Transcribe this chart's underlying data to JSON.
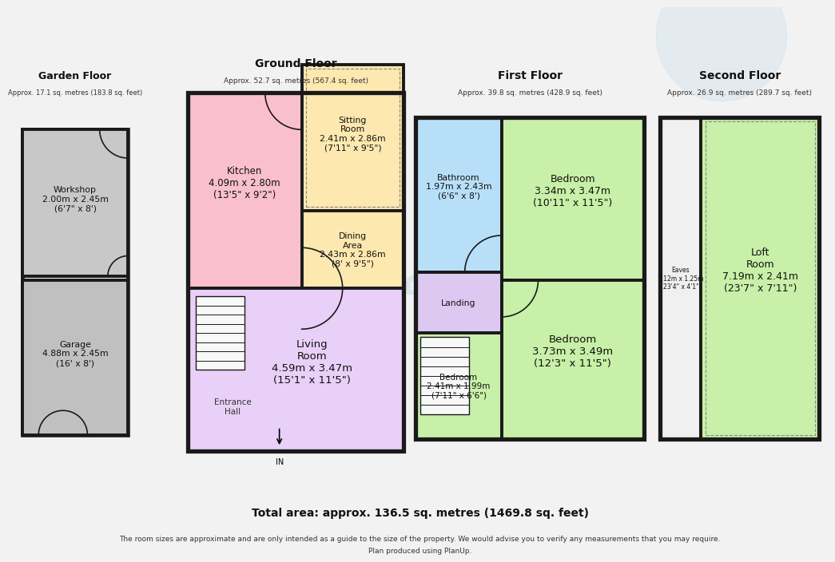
{
  "bg_color": "#f2f2f2",
  "wall_color": "#1a1a1a",
  "wall_lw": 2.8,
  "watermark_text": "Sales and Lettings",
  "total_area": "Total area: approx. 136.5 sq. metres (1469.8 sq. feet)",
  "disclaimer_line1": "The room sizes are approximate and are only intended as a guide to the size of the property. We would advise you to verify any measurements that you may require.",
  "disclaimer_line2": "Plan produced using PlanUp.",
  "garden_label": "Garden Floor",
  "garden_sub": "Approx. 17.1 sq. metres (183.8 sq. feet)",
  "ground_label": "Ground Floor",
  "ground_sub": "Approx. 52.7 sq. metres (567.4 sq. feet)",
  "first_label": "First Floor",
  "first_sub": "Approx. 39.8 sq. metres (428.9 sq. feet)",
  "second_label": "Second Floor",
  "second_sub": "Approx. 26.9 sq. metres (289.7 sq. feet)",
  "colors": {
    "kitchen": "#f9c0cb",
    "sitting": "#fde8b0",
    "dining": "#fde8b0",
    "living": "#e8d0f8",
    "entrance": "#e8d0f8",
    "bathroom": "#b8dff8",
    "bedroom_green": "#c8f0a8",
    "landing": "#dcc8f0",
    "workshop": "#c8c8c8",
    "garage": "#c0c0c0",
    "eaves": "#f0f0f0",
    "loft": "#c8f0a8",
    "wall": "#1a1a1a",
    "bg": "#f2f2f2"
  }
}
